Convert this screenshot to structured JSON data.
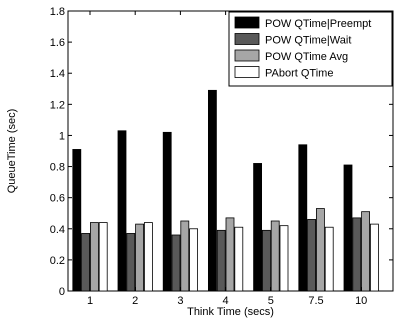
{
  "chart_data": {
    "type": "bar",
    "xlabel": "Think Time (secs)",
    "ylabel": "QueueTime (sec)",
    "ylim": [
      0,
      1.8
    ],
    "yticks": [
      "0",
      "0.2",
      "0.4",
      "0.6",
      "0.8",
      "1",
      "1.2",
      "1.4",
      "1.6",
      "1.8"
    ],
    "categories": [
      "1",
      "2",
      "3",
      "4",
      "5",
      "7.5",
      "10"
    ],
    "legend_position": "top-right",
    "grid": false,
    "series": [
      {
        "name": "POW QTime|Preempt",
        "color": "#000000",
        "values": [
          0.91,
          1.03,
          1.02,
          1.29,
          0.82,
          0.94,
          0.81
        ]
      },
      {
        "name": "POW QTime|Wait",
        "color": "#595959",
        "values": [
          0.37,
          0.37,
          0.36,
          0.39,
          0.39,
          0.46,
          0.47
        ]
      },
      {
        "name": "POW QTime Avg",
        "color": "#a6a6a6",
        "values": [
          0.44,
          0.43,
          0.45,
          0.47,
          0.45,
          0.53,
          0.51
        ]
      },
      {
        "name": "PAbort QTime",
        "color": "#ffffff",
        "values": [
          0.44,
          0.44,
          0.4,
          0.41,
          0.42,
          0.41,
          0.43
        ]
      }
    ]
  }
}
